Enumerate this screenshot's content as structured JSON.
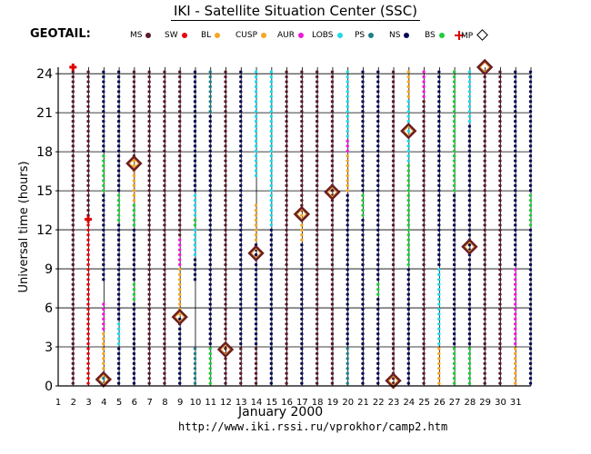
{
  "title": "IKI - Satellite Situation Center (SSC)",
  "satellite": "GEOTAIL:",
  "legend": [
    {
      "label": "MS",
      "region": "MS",
      "color": "#5a1a2a",
      "marker": "dot"
    },
    {
      "label": "SW",
      "region": "SW",
      "color": "#e8000b",
      "marker": "dot"
    },
    {
      "label": "BL",
      "region": "BL",
      "color": "#f5a623",
      "marker": "dot"
    },
    {
      "label": "CUSP",
      "region": "CUSP",
      "color": "#f5a623",
      "marker": "dot"
    },
    {
      "label": "AUR",
      "region": "AUR",
      "color": "#f01ad8",
      "marker": "dot"
    },
    {
      "label": "LOBS",
      "region": "LOBS",
      "color": "#21d8e8",
      "marker": "dot"
    },
    {
      "label": "PS",
      "region": "PS",
      "color": "#1f7e8a",
      "marker": "dot"
    },
    {
      "label": "NS",
      "region": "NS",
      "color": "#0a0a55",
      "marker": "dot"
    },
    {
      "label": "BS",
      "region": "BS",
      "color": "#1fcc3a",
      "marker": "dot"
    },
    {
      "label": "",
      "region": "BS",
      "color": "#e00000",
      "marker": "cross"
    },
    {
      "label": "MP",
      "region": "MP",
      "color": "#000000",
      "marker": "diamond"
    }
  ],
  "xlabel": "January   2000",
  "ylabel": "Universal time (hours)",
  "url": "http://www.iki.rssi.ru/vprokhor/camp2.htm",
  "chart_data": {
    "type": "scatter",
    "title": "IKI - Satellite Situation Center (SSC)",
    "xlabel": "January   2000",
    "ylabel": "Universal time (hours)",
    "xlim": [
      1,
      32
    ],
    "ylim": [
      0,
      24.5
    ],
    "xticks": [
      1,
      2,
      3,
      4,
      5,
      6,
      7,
      8,
      9,
      10,
      11,
      12,
      13,
      14,
      15,
      16,
      17,
      18,
      19,
      20,
      21,
      22,
      23,
      24,
      25,
      26,
      27,
      28,
      29,
      30,
      31
    ],
    "yticks": [
      0,
      3,
      6,
      9,
      12,
      15,
      18,
      21,
      24
    ],
    "grid": true,
    "days": [
      {
        "day": 2,
        "segments": [
          {
            "region": "MS",
            "from": 0,
            "to": 24.5
          }
        ]
      },
      {
        "day": 3,
        "segments": [
          {
            "region": "MS",
            "from": 13,
            "to": 24.5
          },
          {
            "region": "SW",
            "from": 0,
            "to": 13
          }
        ]
      },
      {
        "day": 4,
        "segments": [
          {
            "region": "NS",
            "from": 8,
            "to": 24.5
          },
          {
            "region": "BS",
            "from": 15,
            "to": 18
          },
          {
            "region": "AUR",
            "from": 4,
            "to": 6.5
          },
          {
            "region": "CUSP",
            "from": 1,
            "to": 4
          },
          {
            "region": "PS",
            "from": 0,
            "to": 1
          }
        ]
      },
      {
        "day": 5,
        "segments": [
          {
            "region": "NS",
            "from": 0,
            "to": 24.5
          },
          {
            "region": "BS",
            "from": 12.5,
            "to": 15
          },
          {
            "region": "LOBS",
            "from": 3,
            "to": 5
          }
        ]
      },
      {
        "day": 6,
        "segments": [
          {
            "region": "MS",
            "from": 17.5,
            "to": 24.5
          },
          {
            "region": "CUSP",
            "from": 14,
            "to": 17.5
          },
          {
            "region": "BS",
            "from": 12,
            "to": 14
          },
          {
            "region": "NS",
            "from": 0,
            "to": 12
          },
          {
            "region": "BS",
            "from": 6.5,
            "to": 8
          }
        ]
      },
      {
        "day": 7,
        "segments": [
          {
            "region": "MS",
            "from": 0,
            "to": 24.5
          }
        ]
      },
      {
        "day": 8,
        "segments": [
          {
            "region": "MS",
            "from": 0,
            "to": 24.5
          }
        ]
      },
      {
        "day": 9,
        "segments": [
          {
            "region": "MS",
            "from": 11.5,
            "to": 24.5
          },
          {
            "region": "AUR",
            "from": 9,
            "to": 11.5
          },
          {
            "region": "CUSP",
            "from": 5.5,
            "to": 9
          },
          {
            "region": "NS",
            "from": 0,
            "to": 5.5
          }
        ]
      },
      {
        "day": 10,
        "segments": [
          {
            "region": "NS",
            "from": 8,
            "to": 24.5
          },
          {
            "region": "LOBS",
            "from": 10,
            "to": 15
          },
          {
            "region": "BS",
            "from": 12,
            "to": 13
          },
          {
            "region": "PS",
            "from": 0,
            "to": 3
          }
        ]
      },
      {
        "day": 11,
        "segments": [
          {
            "region": "NS",
            "from": 0,
            "to": 24.5
          },
          {
            "region": "PS",
            "from": 21,
            "to": 24.5
          },
          {
            "region": "BS",
            "from": 0,
            "to": 3
          }
        ]
      },
      {
        "day": 12,
        "segments": [
          {
            "region": "MS",
            "from": 0,
            "to": 24.5
          }
        ]
      },
      {
        "day": 13,
        "segments": [
          {
            "region": "NS",
            "from": 0,
            "to": 24.5
          },
          {
            "region": "MS",
            "from": 0,
            "to": 3
          }
        ]
      },
      {
        "day": 14,
        "segments": [
          {
            "region": "LOBS",
            "from": 16,
            "to": 24.5
          },
          {
            "region": "CUSP",
            "from": 11,
            "to": 14
          },
          {
            "region": "NS",
            "from": 0,
            "to": 11
          },
          {
            "region": "MS",
            "from": 0,
            "to": 3
          }
        ]
      },
      {
        "day": 15,
        "segments": [
          {
            "region": "LOBS",
            "from": 12,
            "to": 24.5
          },
          {
            "region": "NS",
            "from": 0,
            "to": 12
          }
        ]
      },
      {
        "day": 16,
        "segments": [
          {
            "region": "MS",
            "from": 0,
            "to": 24.5
          }
        ]
      },
      {
        "day": 17,
        "segments": [
          {
            "region": "MS",
            "from": 13.5,
            "to": 24.5
          },
          {
            "region": "CUSP",
            "from": 11,
            "to": 13.5
          },
          {
            "region": "NS",
            "from": 0,
            "to": 11
          }
        ]
      },
      {
        "day": 18,
        "segments": [
          {
            "region": "MS",
            "from": 0,
            "to": 24.5
          }
        ]
      },
      {
        "day": 19,
        "segments": [
          {
            "region": "MS",
            "from": 0,
            "to": 24.5
          }
        ]
      },
      {
        "day": 20,
        "segments": [
          {
            "region": "LOBS",
            "from": 19,
            "to": 24.5
          },
          {
            "region": "AUR",
            "from": 18,
            "to": 19
          },
          {
            "region": "CUSP",
            "from": 15,
            "to": 18
          },
          {
            "region": "NS",
            "from": 3,
            "to": 15
          },
          {
            "region": "PS",
            "from": 0,
            "to": 3
          }
        ]
      },
      {
        "day": 21,
        "segments": [
          {
            "region": "NS",
            "from": 0,
            "to": 24.5
          },
          {
            "region": "BS",
            "from": 13,
            "to": 15
          }
        ]
      },
      {
        "day": 22,
        "segments": [
          {
            "region": "NS",
            "from": 0,
            "to": 24.5
          },
          {
            "region": "BS",
            "from": 7,
            "to": 8
          }
        ]
      },
      {
        "day": 23,
        "segments": [
          {
            "region": "MS",
            "from": 0,
            "to": 24.5
          }
        ]
      },
      {
        "day": 24,
        "segments": [
          {
            "region": "CUSP",
            "from": 22,
            "to": 24.5
          },
          {
            "region": "LOBS",
            "from": 17,
            "to": 22
          },
          {
            "region": "BS",
            "from": 9,
            "to": 17
          },
          {
            "region": "NS",
            "from": 0,
            "to": 9
          }
        ]
      },
      {
        "day": 25,
        "segments": [
          {
            "region": "AUR",
            "from": 22,
            "to": 24.5
          },
          {
            "region": "MS",
            "from": 0,
            "to": 22
          }
        ]
      },
      {
        "day": 26,
        "segments": [
          {
            "region": "NS",
            "from": 0,
            "to": 24.5
          },
          {
            "region": "LOBS",
            "from": 3,
            "to": 9
          },
          {
            "region": "CUSP",
            "from": 0,
            "to": 3
          }
        ]
      },
      {
        "day": 27,
        "segments": [
          {
            "region": "BS",
            "from": 0,
            "to": 24.5
          },
          {
            "region": "NS",
            "from": 3,
            "to": 15
          }
        ]
      },
      {
        "day": 28,
        "segments": [
          {
            "region": "LOBS",
            "from": 20,
            "to": 24.5
          },
          {
            "region": "NS",
            "from": 0,
            "to": 20
          },
          {
            "region": "BS",
            "from": 0,
            "to": 3
          }
        ]
      },
      {
        "day": 29,
        "segments": [
          {
            "region": "MS",
            "from": 0,
            "to": 24.5
          }
        ]
      },
      {
        "day": 30,
        "segments": [
          {
            "region": "MS",
            "from": 0,
            "to": 24.5
          }
        ]
      },
      {
        "day": 31,
        "segments": [
          {
            "region": "NS",
            "from": 0,
            "to": 24.5
          },
          {
            "region": "AUR",
            "from": 3,
            "to": 9
          },
          {
            "region": "CUSP",
            "from": 0,
            "to": 3
          }
        ]
      },
      {
        "day": 32,
        "segments": [
          {
            "region": "NS",
            "from": 0,
            "to": 24.5
          },
          {
            "region": "BS",
            "from": 12,
            "to": 15
          }
        ]
      }
    ],
    "markers": [
      {
        "type": "BS",
        "day": 2,
        "hour": 24.5
      },
      {
        "type": "BS",
        "day": 3,
        "hour": 12.8
      },
      {
        "type": "MP",
        "day": 4,
        "hour": 0.5
      },
      {
        "type": "MP",
        "day": 6,
        "hour": 17.1
      },
      {
        "type": "MP",
        "day": 9,
        "hour": 5.3
      },
      {
        "type": "MP",
        "day": 12,
        "hour": 2.8
      },
      {
        "type": "MP",
        "day": 14,
        "hour": 10.2
      },
      {
        "type": "MP",
        "day": 17,
        "hour": 13.2
      },
      {
        "type": "MP",
        "day": 19,
        "hour": 14.9
      },
      {
        "type": "MP",
        "day": 23,
        "hour": 0.4
      },
      {
        "type": "MP",
        "day": 24,
        "hour": 19.6
      },
      {
        "type": "MP",
        "day": 28,
        "hour": 10.7
      },
      {
        "type": "MP",
        "day": 29,
        "hour": 24.5
      }
    ]
  }
}
